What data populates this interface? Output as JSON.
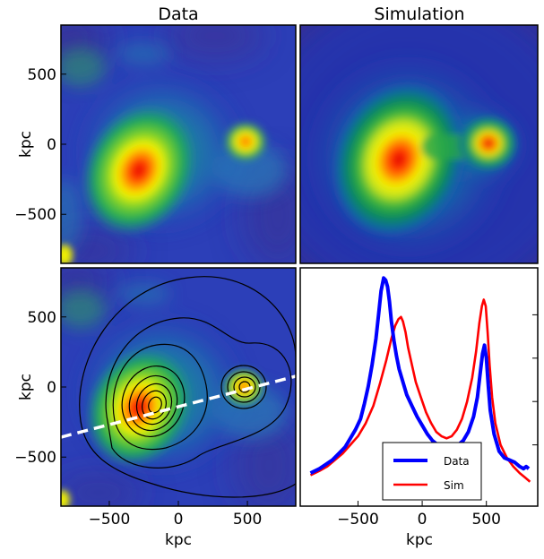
{
  "panels": {
    "data_title": "Data",
    "sim_title": "Simulation",
    "ylabel": "kpc",
    "xlabel": "kpc"
  },
  "chart_data": [
    {
      "type": "heatmap",
      "panel": "top-left",
      "title": "Data",
      "xlabel": "",
      "ylabel": "kpc",
      "xlim": [
        -850,
        850
      ],
      "ylim": [
        -850,
        850
      ],
      "yticks": [
        500,
        0,
        -500
      ],
      "ytick_labels": [
        "500",
        "0",
        "−500"
      ],
      "colormap": "jet",
      "sources": [
        {
          "name": "main cluster",
          "x": -260,
          "y": -200,
          "peak": 1.0
        },
        {
          "name": "subcluster",
          "x": 490,
          "y": 0,
          "peak": 0.8
        }
      ]
    },
    {
      "type": "heatmap",
      "panel": "top-right",
      "title": "Simulation",
      "xlim": [
        -850,
        850
      ],
      "ylim": [
        -850,
        850
      ],
      "colormap": "jet",
      "sources": [
        {
          "name": "main cluster",
          "x": -230,
          "y": -120,
          "peak": 1.0
        },
        {
          "name": "subcluster",
          "x": 560,
          "y": 0,
          "peak": 0.9
        }
      ]
    },
    {
      "type": "heatmap",
      "panel": "bottom-left",
      "xlabel": "kpc",
      "ylabel": "kpc",
      "xlim": [
        -850,
        850
      ],
      "ylim": [
        -850,
        850
      ],
      "xticks": [
        -500,
        0,
        500
      ],
      "xtick_labels": [
        "−500",
        "0",
        "500"
      ],
      "yticks": [
        500,
        0,
        -500
      ],
      "ytick_labels": [
        "500",
        "0",
        "−500"
      ],
      "overlay": "black contours with dashed white profile line",
      "profile_line": {
        "x": [
          -850,
          850
        ],
        "y": [
          -350,
          90
        ],
        "style": "dashed",
        "color": "#ffffff"
      }
    },
    {
      "type": "line",
      "panel": "bottom-right",
      "xlabel": "kpc",
      "xlim": [
        -950,
        900
      ],
      "ylim": [
        0,
        1.0
      ],
      "xticks": [
        -500,
        0,
        500
      ],
      "xtick_labels": [
        "−500",
        "0",
        "500"
      ],
      "series": [
        {
          "name": "Data",
          "color": "#0000ff",
          "x": [
            -870,
            -800,
            -750,
            -700,
            -650,
            -600,
            -560,
            -520,
            -480,
            -450,
            -420,
            -390,
            -360,
            -340,
            -320,
            -300,
            -285,
            -270,
            -255,
            -240,
            -220,
            -200,
            -180,
            -150,
            -120,
            -80,
            -40,
            0,
            40,
            80,
            120,
            160,
            200,
            240,
            280,
            320,
            360,
            400,
            430,
            450,
            470,
            485,
            500,
            515,
            530,
            560,
            600,
            640,
            680,
            720,
            760,
            790,
            810,
            830
          ],
          "values": [
            0.07,
            0.09,
            0.11,
            0.13,
            0.16,
            0.19,
            0.23,
            0.27,
            0.32,
            0.39,
            0.47,
            0.57,
            0.69,
            0.8,
            0.91,
            0.97,
            0.96,
            0.93,
            0.86,
            0.77,
            0.68,
            0.61,
            0.55,
            0.49,
            0.43,
            0.38,
            0.33,
            0.29,
            0.25,
            0.22,
            0.2,
            0.19,
            0.18,
            0.19,
            0.2,
            0.22,
            0.26,
            0.33,
            0.42,
            0.52,
            0.62,
            0.66,
            0.6,
            0.47,
            0.36,
            0.25,
            0.17,
            0.14,
            0.13,
            0.12,
            0.1,
            0.09,
            0.1,
            0.09
          ]
        },
        {
          "name": "Sim",
          "color": "#ff0000",
          "x": [
            -870,
            -800,
            -740,
            -680,
            -620,
            -560,
            -500,
            -440,
            -380,
            -330,
            -280,
            -240,
            -210,
            -185,
            -165,
            -150,
            -130,
            -110,
            -80,
            -50,
            -10,
            30,
            70,
            110,
            150,
            190,
            230,
            270,
            310,
            350,
            390,
            420,
            445,
            465,
            480,
            495,
            510,
            525,
            545,
            570,
            610,
            660,
            710,
            760,
            800,
            840
          ],
          "values": [
            0.06,
            0.08,
            0.1,
            0.13,
            0.16,
            0.2,
            0.24,
            0.3,
            0.38,
            0.48,
            0.59,
            0.69,
            0.75,
            0.78,
            0.79,
            0.77,
            0.72,
            0.65,
            0.57,
            0.49,
            0.42,
            0.35,
            0.3,
            0.26,
            0.24,
            0.23,
            0.24,
            0.27,
            0.32,
            0.4,
            0.51,
            0.63,
            0.76,
            0.84,
            0.87,
            0.84,
            0.72,
            0.57,
            0.42,
            0.3,
            0.2,
            0.14,
            0.1,
            0.07,
            0.05,
            0.03
          ]
        }
      ],
      "legend": {
        "placement": "bottom-center",
        "entries": [
          "Data",
          "Sim"
        ]
      }
    }
  ]
}
